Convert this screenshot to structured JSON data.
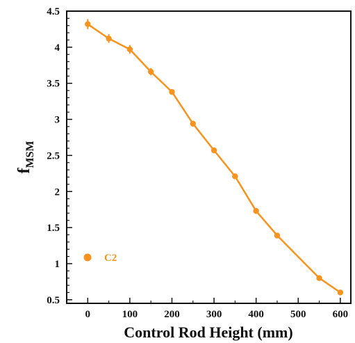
{
  "chart_data": {
    "type": "line",
    "xlabel": "Control Rod Height (mm)",
    "ylabel_main": "f",
    "ylabel_sub": "MSM",
    "xlim": [
      -50,
      625
    ],
    "ylim": [
      0.45,
      4.5
    ],
    "xticks": [
      0,
      100,
      200,
      300,
      400,
      500,
      600
    ],
    "yticks": [
      0.5,
      1,
      1.5,
      2,
      2.5,
      3,
      3.5,
      4,
      4.5
    ],
    "xtick_labels": [
      "0",
      "100",
      "200",
      "300",
      "400",
      "500",
      "600"
    ],
    "ytick_labels": [
      "0.5",
      "1",
      "1.5",
      "2",
      "2.5",
      "3",
      "3.5",
      "4",
      "4.5"
    ],
    "legend_position": "bottom-left",
    "series": [
      {
        "name": "C2",
        "color": "#f7931e",
        "x": [
          0,
          50,
          100,
          150,
          200,
          250,
          300,
          350,
          400,
          450,
          550,
          600
        ],
        "y": [
          4.32,
          4.12,
          3.97,
          3.66,
          3.38,
          2.94,
          2.57,
          2.21,
          1.73,
          1.39,
          0.8,
          0.6
        ],
        "yerr": [
          0.07,
          0.06,
          0.06,
          0.05,
          0.04,
          0.04,
          0.03,
          0.03,
          0.03,
          0.02,
          0.02,
          0.01
        ]
      }
    ]
  }
}
